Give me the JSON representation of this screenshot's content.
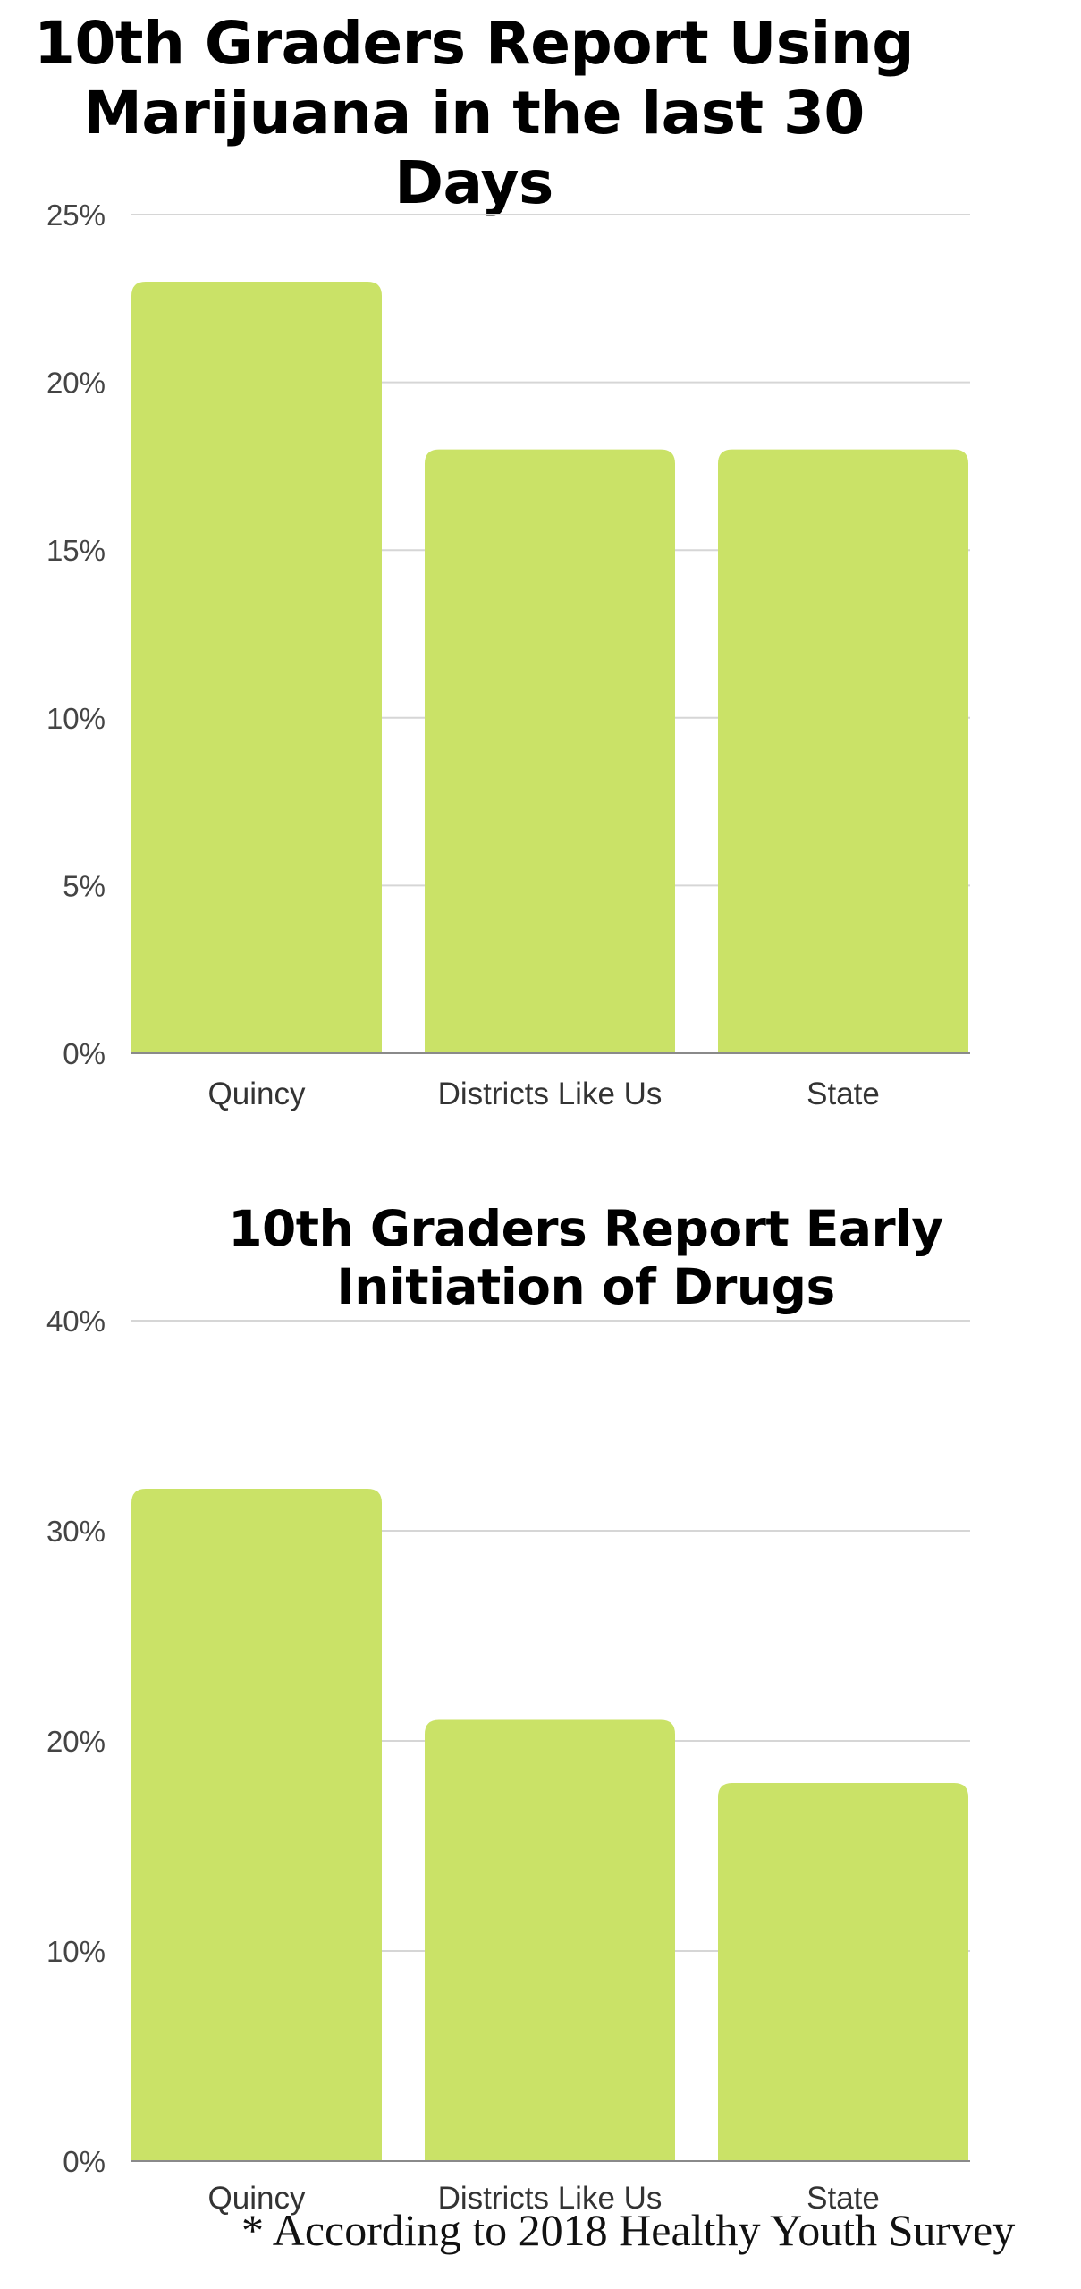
{
  "chart_data": [
    {
      "type": "bar",
      "title": "10th Graders Report Using Marijuana in the last 30 Days",
      "categories": [
        "Quincy",
        "Districts Like Us",
        "State"
      ],
      "values": [
        23,
        18,
        18
      ],
      "unit": "%",
      "ylim": [
        0,
        25
      ],
      "yticks": [
        "0%",
        "5%",
        "10%",
        "15%",
        "20%",
        "25%"
      ],
      "grid": true,
      "color": "#cae267"
    },
    {
      "type": "bar",
      "title": "10th Graders Report Early Initiation of Drugs",
      "categories": [
        "Quincy",
        "Districts Like Us",
        "State"
      ],
      "values": [
        32,
        21,
        18
      ],
      "unit": "%",
      "ylim": [
        0,
        40
      ],
      "yticks": [
        "0%",
        "10%",
        "20%",
        "30%",
        "40%"
      ],
      "grid": true,
      "color": "#cae267"
    }
  ],
  "footnote": "* According to 2018 Healthy Youth Survey"
}
